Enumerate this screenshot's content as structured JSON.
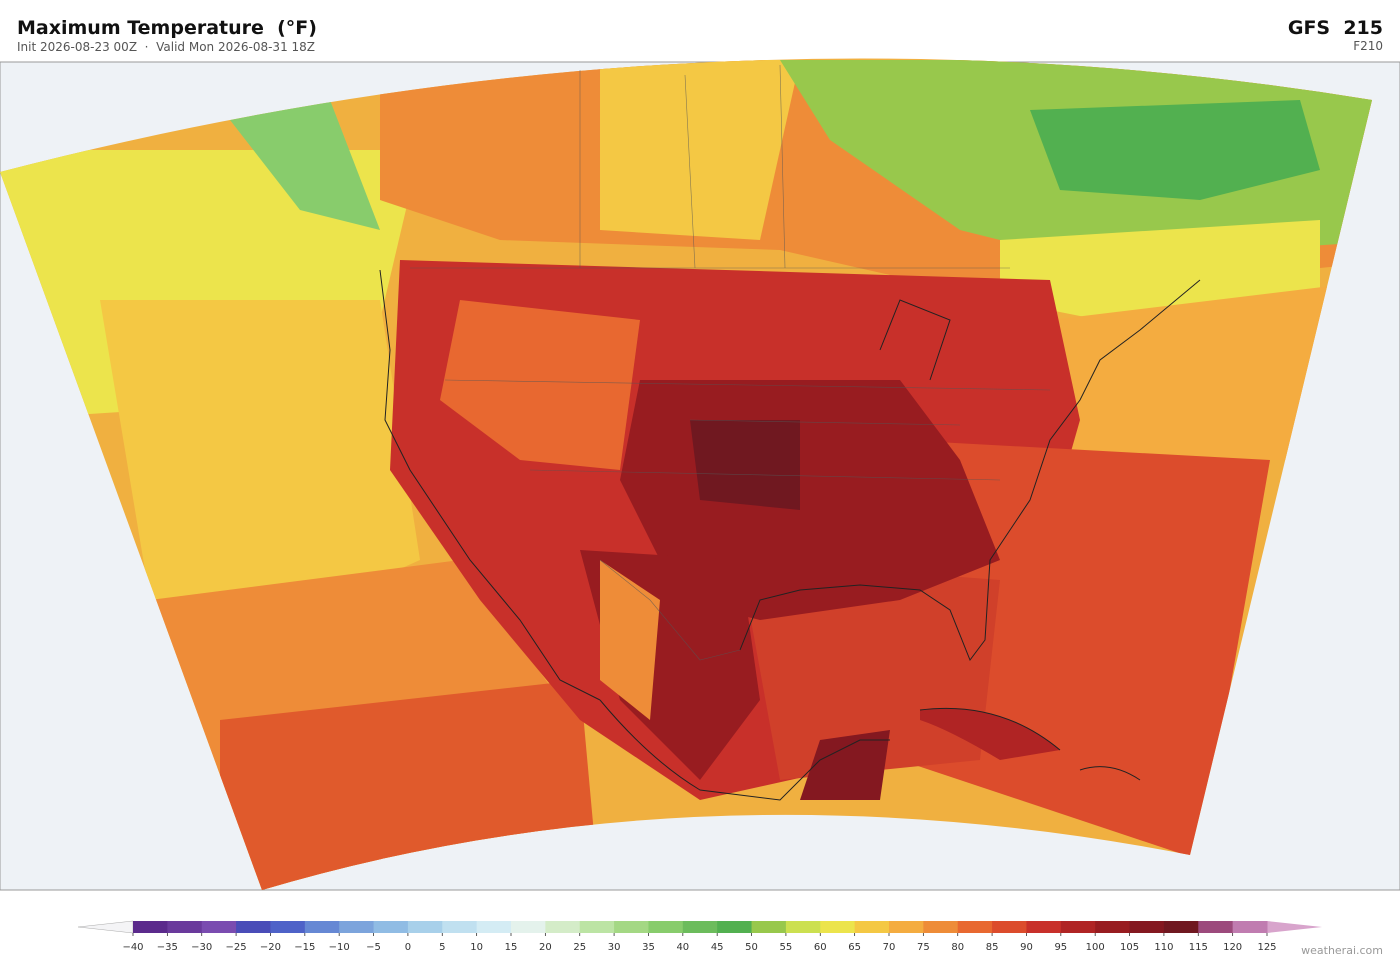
{
  "header": {
    "title": "Maximum Temperature  (°F)",
    "subtitle": "Init 2026-08-23 00Z  ·  Valid Mon 2026-08-31 18Z",
    "model": "GFS  215",
    "forecast_hour": "F210"
  },
  "colorbar": {
    "ticks": [
      {
        "value": -40,
        "label": "−40"
      },
      {
        "value": -35,
        "label": "−35"
      },
      {
        "value": -30,
        "label": "−30"
      },
      {
        "value": -25,
        "label": "−25"
      },
      {
        "value": -20,
        "label": "−20"
      },
      {
        "value": -15,
        "label": "−15"
      },
      {
        "value": -10,
        "label": "−10"
      },
      {
        "value": -5,
        "label": "−5"
      },
      0,
      5,
      10,
      15,
      20,
      25,
      30,
      35,
      40,
      45,
      50,
      55,
      60,
      65,
      70,
      75,
      80,
      85,
      90,
      95,
      100,
      105,
      110,
      115,
      120,
      125
    ],
    "colors": [
      "#5b2a8c",
      "#6a3a9c",
      "#7a4cb0",
      "#4a4db8",
      "#4e62c8",
      "#6688d4",
      "#7ca4dc",
      "#90bce4",
      "#a8d0ea",
      "#c0e0f0",
      "#d4ecf4",
      "#e4f2ec",
      "#d4ecc8",
      "#bce4a4",
      "#a4d884",
      "#88cc6c",
      "#6cbc5c",
      "#52b050",
      "#98c84c",
      "#cce050",
      "#ece44c",
      "#f4c844",
      "#f4ac40",
      "#ee8c38",
      "#e86830",
      "#dc4c2c",
      "#c8302a",
      "#b02424",
      "#981c20",
      "#841820",
      "#701820",
      "#9c4a7c",
      "#c07cb0"
    ],
    "under_color": "#f4f4f6",
    "over_color": "#d8a4cc"
  },
  "footer": {
    "credit": "weatherai.com"
  }
}
